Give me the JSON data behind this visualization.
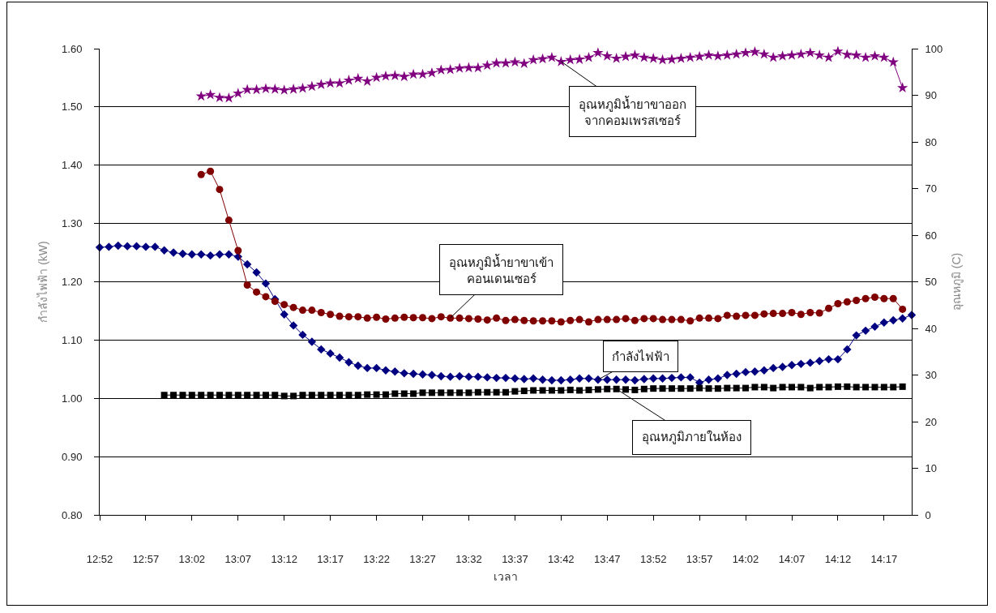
{
  "chart_data": {
    "type": "line",
    "xlabel": "เวลา",
    "ylabel": "กำลังไฟฟ้า (kW)",
    "y2label": "อุณหภูมิ (C)",
    "x": [
      12.8667,
      12.8833,
      12.9,
      12.9167,
      12.9333,
      12.95,
      12.9667,
      12.9833,
      13,
      13.0167,
      13.0333,
      13.05,
      13.0667,
      13.0833,
      13.1,
      13.1167,
      13.1333,
      13.15,
      13.1667,
      13.1833,
      13.2,
      13.2167,
      13.2333,
      13.25,
      13.2667,
      13.2833,
      13.3,
      13.3167,
      13.3333,
      13.35,
      13.3667,
      13.3833,
      13.4,
      13.4167,
      13.4333,
      13.45,
      13.4667,
      13.4833,
      13.5,
      13.5167,
      13.5333,
      13.55,
      13.5667,
      13.5833,
      13.6,
      13.6167,
      13.6333,
      13.65,
      13.6667,
      13.6833,
      13.7,
      13.7167,
      13.7333,
      13.75,
      13.7667,
      13.7833,
      13.8,
      13.8167,
      13.8333,
      13.85,
      13.8667,
      13.8833,
      13.9,
      13.9167,
      13.9333,
      13.95,
      13.9667,
      13.9833,
      14,
      14.0167,
      14.0333,
      14.05,
      14.0667,
      14.0833,
      14.1,
      14.1167,
      14.1333,
      14.15,
      14.1667,
      14.1833,
      14.2,
      14.2167,
      14.2333,
      14.25,
      14.2667,
      14.2833,
      14.3,
      14.3167,
      14.3333
    ],
    "xlim": [
      12.8667,
      14.3333
    ],
    "xticks": [
      {
        "value": 12.8667,
        "label": "12:52"
      },
      {
        "value": 12.95,
        "label": "12:57"
      },
      {
        "value": 13.0333,
        "label": "13:02"
      },
      {
        "value": 13.1167,
        "label": "13:07"
      },
      {
        "value": 13.2,
        "label": "13:12"
      },
      {
        "value": 13.2833,
        "label": "13:17"
      },
      {
        "value": 13.3667,
        "label": "13:22"
      },
      {
        "value": 13.45,
        "label": "13:27"
      },
      {
        "value": 13.5333,
        "label": "13:32"
      },
      {
        "value": 13.6167,
        "label": "13:37"
      },
      {
        "value": 13.7,
        "label": "13:42"
      },
      {
        "value": 13.7833,
        "label": "13:47"
      },
      {
        "value": 13.8667,
        "label": "13:52"
      },
      {
        "value": 13.95,
        "label": "13:57"
      },
      {
        "value": 14.0333,
        "label": "14:02"
      },
      {
        "value": 14.1167,
        "label": "14:07"
      },
      {
        "value": 14.2,
        "label": "14:12"
      },
      {
        "value": 14.2833,
        "label": "14:17"
      }
    ],
    "ylim": [
      0.8,
      1.6
    ],
    "yticks": [
      {
        "value": 0.8,
        "label": "0.80"
      },
      {
        "value": 0.9,
        "label": "0.90"
      },
      {
        "value": 1,
        "label": "1.00"
      },
      {
        "value": 1.1,
        "label": "1.10"
      },
      {
        "value": 1.2,
        "label": "1.20"
      },
      {
        "value": 1.3,
        "label": "1.30"
      },
      {
        "value": 1.4,
        "label": "1.40"
      },
      {
        "value": 1.5,
        "label": "1.50"
      },
      {
        "value": 1.6,
        "label": "1.60"
      }
    ],
    "y2lim": [
      0,
      100
    ],
    "y2ticks": [
      0,
      10,
      20,
      30,
      40,
      50,
      60,
      70,
      80,
      90,
      100
    ],
    "grid": "y",
    "line_style": "solid",
    "series": [
      {
        "color": "#000080",
        "marker": "diamond",
        "values": [
          1.259,
          1.26,
          1.262,
          1.261,
          1.261,
          1.26,
          1.26,
          1.254,
          1.25,
          1.248,
          1.247,
          1.247,
          1.245,
          1.247,
          1.247,
          1.243,
          1.23,
          1.216,
          1.197,
          1.17,
          1.144,
          1.125,
          1.109,
          1.097,
          1.084,
          1.077,
          1.07,
          1.062,
          1.056,
          1.052,
          1.052,
          1.048,
          1.046,
          1.043,
          1.042,
          1.041,
          1.04,
          1.038,
          1.037,
          1.038,
          1.037,
          1.037,
          1.036,
          1.035,
          1.035,
          1.034,
          1.033,
          1.034,
          1.032,
          1.031,
          1.031,
          1.032,
          1.034,
          1.034,
          1.032,
          1.032,
          1.032,
          1.032,
          1.031,
          1.033,
          1.034,
          1.034,
          1.035,
          1.036,
          1.036,
          1.027,
          1.032,
          1.034,
          1.04,
          1.042,
          1.045,
          1.046,
          1.048,
          1.052,
          1.054,
          1.057,
          1.059,
          1.061,
          1.064,
          1.067,
          1.067,
          1.084,
          1.108,
          1.116,
          1.123,
          1.13,
          1.134,
          1.137,
          1.143
        ]
      },
      {
        "color": "#000000",
        "marker": "square",
        "axis": "y2",
        "values": [
          null,
          null,
          null,
          null,
          null,
          null,
          null,
          25.7,
          25.7,
          25.7,
          25.7,
          25.7,
          25.7,
          25.7,
          25.7,
          25.7,
          25.7,
          25.7,
          25.7,
          25.7,
          25.5,
          25.5,
          25.7,
          25.7,
          25.7,
          25.7,
          25.7,
          25.7,
          25.7,
          25.8,
          25.8,
          25.8,
          26.0,
          26.0,
          26.0,
          26.2,
          26.2,
          26.2,
          26.2,
          26.2,
          26.2,
          26.3,
          26.3,
          26.3,
          26.3,
          26.5,
          26.6,
          26.7,
          26.7,
          26.7,
          26.7,
          26.8,
          26.7,
          26.8,
          26.9,
          27.0,
          27.0,
          26.9,
          26.8,
          27.0,
          27.1,
          27.1,
          27.1,
          27.1,
          27.1,
          27.2,
          27.1,
          27.1,
          27.2,
          27.2,
          27.2,
          27.4,
          27.4,
          27.2,
          27.4,
          27.4,
          27.4,
          27.2,
          27.4,
          27.4,
          27.5,
          27.5,
          27.4,
          27.4,
          27.4,
          27.4,
          27.4,
          27.5,
          null
        ]
      },
      {
        "color": "#800000",
        "marker": "circle",
        "axis": "y2",
        "values": [
          null,
          null,
          null,
          null,
          null,
          null,
          null,
          null,
          null,
          null,
          null,
          73.0,
          73.7,
          69.8,
          63.2,
          56.7,
          49.3,
          47.8,
          46.8,
          45.8,
          45.1,
          44.5,
          43.9,
          43.9,
          43.4,
          43.0,
          42.6,
          42.5,
          42.5,
          42.2,
          42.4,
          42.0,
          42.2,
          42.4,
          42.3,
          42.3,
          42.1,
          42.5,
          42.2,
          42.2,
          42.1,
          42.0,
          41.8,
          42.2,
          41.7,
          41.9,
          41.7,
          41.6,
          41.6,
          41.6,
          41.4,
          41.7,
          41.9,
          41.4,
          41.9,
          41.9,
          41.9,
          42.1,
          41.7,
          42.1,
          42.1,
          41.9,
          41.9,
          41.9,
          41.6,
          42.2,
          42.2,
          42.1,
          42.8,
          42.6,
          42.8,
          42.8,
          43.1,
          43.2,
          43.2,
          43.4,
          43.0,
          43.4,
          43.3,
          44.3,
          45.3,
          45.7,
          46.0,
          46.4,
          46.7,
          46.4,
          46.4,
          44.1,
          null
        ]
      },
      {
        "color": "#800080",
        "marker": "star",
        "axis": "y2",
        "values": [
          null,
          null,
          null,
          null,
          null,
          null,
          null,
          null,
          null,
          null,
          null,
          89.8,
          90.1,
          89.5,
          89.4,
          90.4,
          91.2,
          91.2,
          91.4,
          91.3,
          91.1,
          91.3,
          91.5,
          91.9,
          92.3,
          92.6,
          92.6,
          93.2,
          93.6,
          93.0,
          93.8,
          94.1,
          94.2,
          94.0,
          94.5,
          94.5,
          94.8,
          95.4,
          95.5,
          95.8,
          95.9,
          95.9,
          96.4,
          96.9,
          96.9,
          97.1,
          96.8,
          97.6,
          97.8,
          98.1,
          97.2,
          97.6,
          97.7,
          98.1,
          99.1,
          98.4,
          97.9,
          98.3,
          98.6,
          98.1,
          97.9,
          97.6,
          97.7,
          97.9,
          98.1,
          98.3,
          98.6,
          98.4,
          98.6,
          98.8,
          99.1,
          99.3,
          98.8,
          98.1,
          98.4,
          98.6,
          98.8,
          99.1,
          98.6,
          98.1,
          99.4,
          98.7,
          98.6,
          98.1,
          98.4,
          98.1,
          97.1,
          91.6,
          null
        ]
      }
    ],
    "annotations": [
      {
        "text": "อุณหภูมิน้ำยาขาออก\nจากคอมเพรสเซอร์",
        "x": 13.7,
        "y": 1.578
      },
      {
        "text": "อุณหภูมิน้ำยาขาเข้า\nคอนเดนเซอร์",
        "x": 13.5,
        "y": 1.138
      },
      {
        "text": "กำลังไฟฟ้า",
        "x": 13.7667,
        "y": 1.032
      },
      {
        "text": "อุณหภูมิภายในห้อง",
        "x": 13.8,
        "y": 1.016
      }
    ]
  }
}
